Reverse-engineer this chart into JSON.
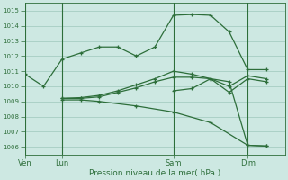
{
  "xlabel": "Pression niveau de la mer( hPa )",
  "ylim": [
    1005.5,
    1015.5
  ],
  "yticks": [
    1006,
    1007,
    1008,
    1009,
    1010,
    1011,
    1012,
    1013,
    1014,
    1015
  ],
  "background_color": "#cde8e2",
  "grid_color": "#9ec8bc",
  "line_color": "#2d6e3a",
  "day_labels": [
    "Ven",
    "Lun",
    "Sam",
    "Dim"
  ],
  "day_positions": [
    0,
    14,
    56,
    84
  ],
  "xlim": [
    0,
    98
  ],
  "lines": [
    {
      "x": [
        0,
        7,
        14,
        21,
        28,
        35,
        42,
        49,
        56,
        63,
        70,
        77,
        84,
        91
      ],
      "y": [
        1010.8,
        1010.0,
        1011.8,
        1012.2,
        1012.6,
        1012.6,
        1012.0,
        1012.6,
        1014.7,
        1014.75,
        1014.7,
        1013.6,
        1011.1,
        1011.1
      ]
    },
    {
      "x": [
        14,
        21,
        28,
        35,
        42,
        49,
        56,
        63,
        70,
        77,
        84,
        91
      ],
      "y": [
        1009.2,
        1009.2,
        1009.3,
        1009.6,
        1009.9,
        1010.3,
        1010.6,
        1010.6,
        1010.5,
        1009.6,
        1010.5,
        1010.3
      ]
    },
    {
      "x": [
        14,
        21,
        28,
        35,
        42,
        49,
        56,
        63,
        70,
        77,
        84,
        91
      ],
      "y": [
        1009.2,
        1009.25,
        1009.4,
        1009.7,
        1010.1,
        1010.5,
        1011.0,
        1010.8,
        1010.5,
        1010.0,
        1010.7,
        1010.5
      ]
    },
    {
      "x": [
        14,
        21,
        28,
        42,
        56,
        70,
        84,
        91
      ],
      "y": [
        1009.1,
        1009.1,
        1009.0,
        1008.7,
        1008.3,
        1007.6,
        1006.1,
        1006.05
      ]
    },
    {
      "x": [
        56,
        63,
        70,
        77,
        84,
        91
      ],
      "y": [
        1009.7,
        1009.85,
        1010.5,
        1010.3,
        1006.1,
        1006.05
      ]
    }
  ]
}
